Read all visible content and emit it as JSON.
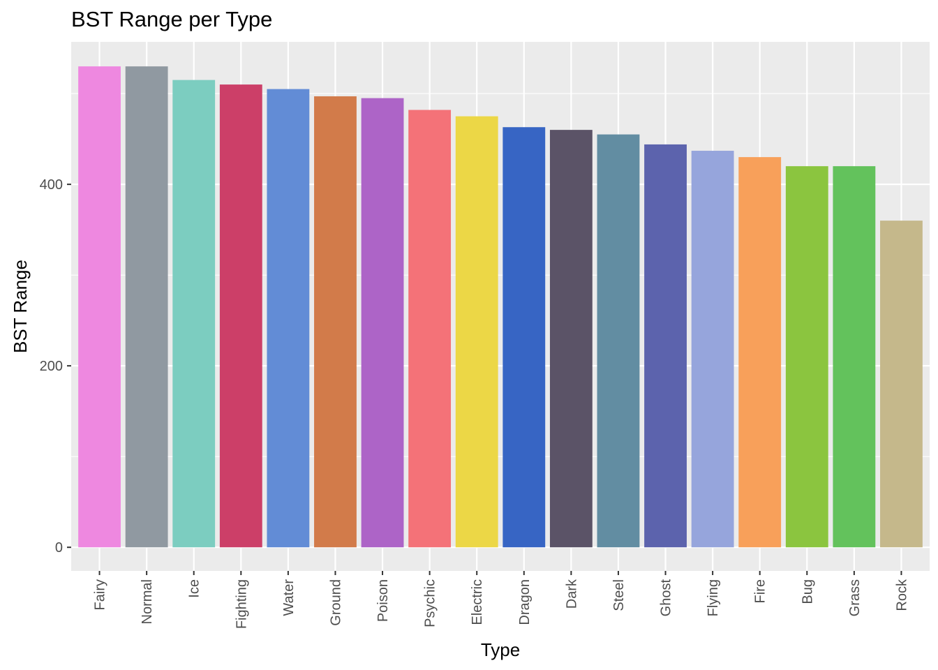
{
  "chart_data": {
    "type": "bar",
    "title": "BST Range per Type",
    "xlabel": "Type",
    "ylabel": "BST Range",
    "categories": [
      "Fairy",
      "Normal",
      "Ice",
      "Fighting",
      "Water",
      "Ground",
      "Poison",
      "Psychic",
      "Electric",
      "Dragon",
      "Dark",
      "Steel",
      "Ghost",
      "Flying",
      "Fire",
      "Bug",
      "Grass",
      "Rock"
    ],
    "values": [
      530,
      530,
      515,
      510,
      505,
      497,
      495,
      482,
      475,
      463,
      460,
      455,
      444,
      437,
      430,
      420,
      420,
      360
    ],
    "colors": [
      "#ee88e0",
      "#9099a1",
      "#7ccdc0",
      "#cc3f68",
      "#628cd6",
      "#d27b4a",
      "#ad64c7",
      "#f47278",
      "#ecd746",
      "#3765c4",
      "#5b5367",
      "#628da2",
      "#5c63ad",
      "#96a5dc",
      "#f8a05a",
      "#8bc53f",
      "#63c25c",
      "#c5b88b"
    ],
    "yticks": [
      0,
      200,
      400
    ],
    "ylim": [
      -26,
      557
    ],
    "grid": true,
    "panel_background": "#ebebeb",
    "grid_color": "#ffffff"
  }
}
